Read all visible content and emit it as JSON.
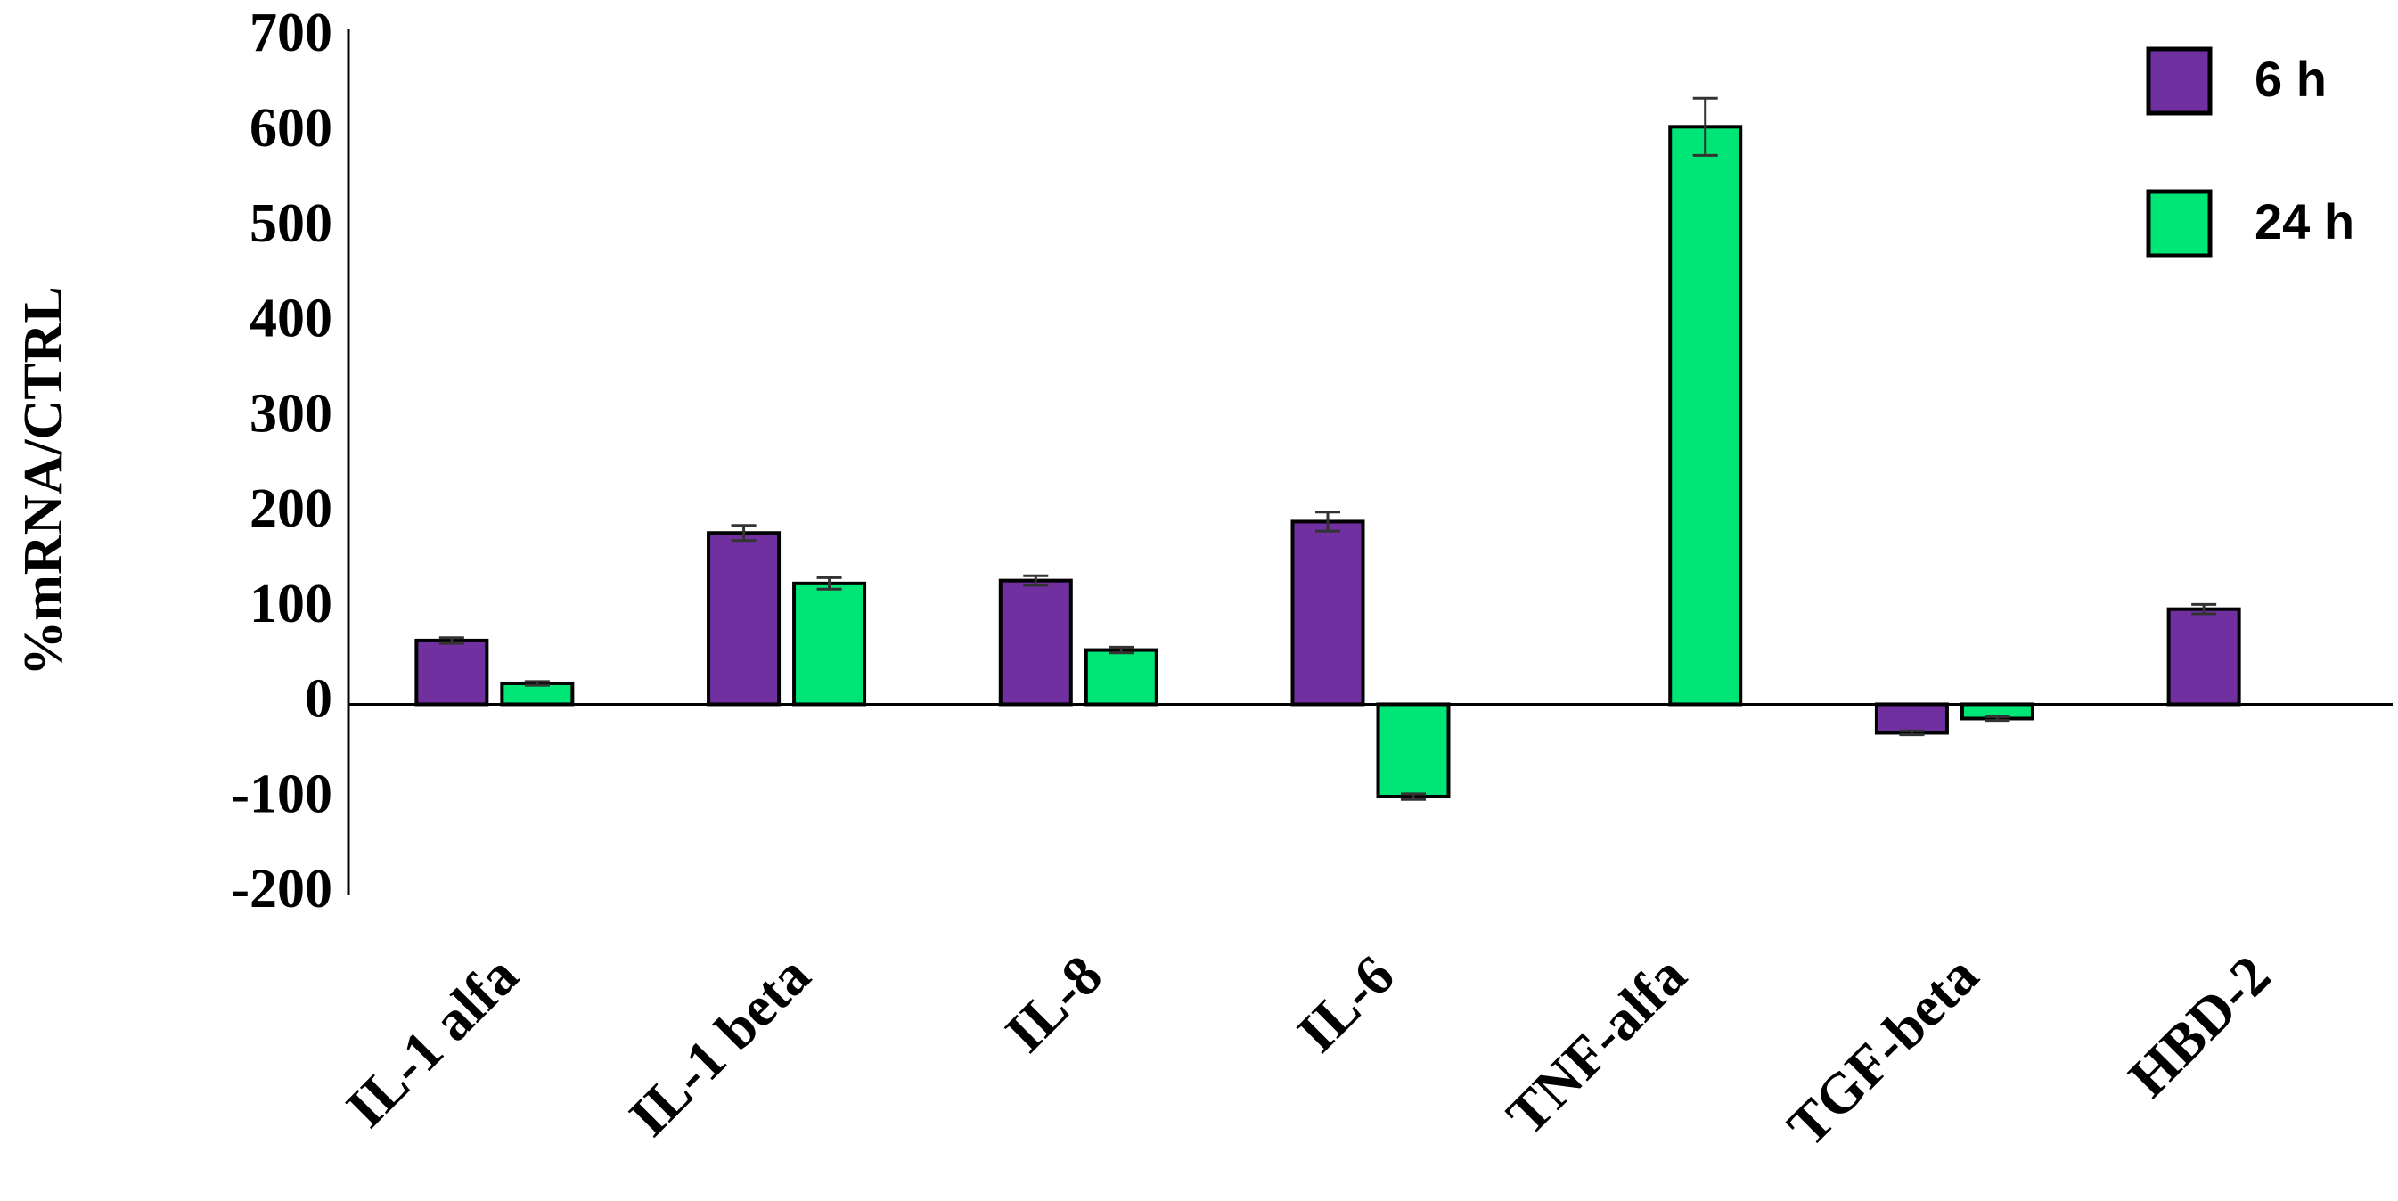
{
  "chart_data": {
    "type": "bar",
    "y_label": "%mRNA/CTRL",
    "categories": [
      "IL-1 alfa",
      "IL-1 beta",
      "IL-8",
      "IL-6",
      "TNF-alfa",
      "TGF-beta",
      "HBD-2"
    ],
    "series": [
      {
        "name": "6 h",
        "color": "#7030a0",
        "values": [
          67,
          180,
          130,
          192,
          null,
          -30,
          100
        ],
        "errors": [
          3,
          8,
          5,
          10,
          null,
          2,
          5
        ]
      },
      {
        "name": "24 h",
        "color": "#00e676",
        "values": [
          22,
          127,
          57,
          -97,
          607,
          -15,
          null
        ],
        "errors": [
          2,
          6,
          3,
          3,
          30,
          2,
          null
        ]
      }
    ],
    "ylim": [
      -200,
      700
    ],
    "yticks": [
      -200,
      -100,
      0,
      100,
      200,
      300,
      400,
      500,
      600,
      700
    ],
    "grid": false,
    "legend": "top-right"
  }
}
